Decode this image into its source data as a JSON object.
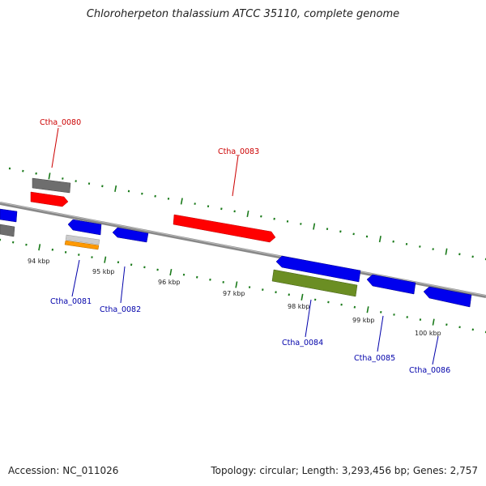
{
  "title": "Chloroherpeton thalassium ATCC 35110, complete genome",
  "footer": {
    "accession": "Accession: NC_011026",
    "summary": "Topology: circular; Length: 3,293,456 bp; Genes: 2,757"
  },
  "colors": {
    "forward_gene": "#ff0000",
    "reverse_gene": "#0000ee",
    "pseudo_gene": "#6e6e6e",
    "rna_gene": "#ff9900",
    "other_gene": "#6b8e23",
    "backbone": "#888888",
    "tick": "#1a7a1a",
    "forward_label": "#cc0000",
    "reverse_label": "#0000aa"
  },
  "kbp_ticks": [
    "94 kbp",
    "95 kbp",
    "96 kbp",
    "97 kbp",
    "98 kbp",
    "99 kbp",
    "100 kbp"
  ],
  "gene_labels": [
    {
      "text": "Ctha_0080",
      "strand": "forward"
    },
    {
      "text": "Ctha_0083",
      "strand": "forward"
    },
    {
      "text": "Ctha_0081",
      "strand": "reverse"
    },
    {
      "text": "Ctha_0082",
      "strand": "reverse"
    },
    {
      "text": "Ctha_0084",
      "strand": "reverse"
    },
    {
      "text": "Ctha_0085",
      "strand": "reverse"
    },
    {
      "text": "Ctha_0086",
      "strand": "reverse"
    }
  ]
}
